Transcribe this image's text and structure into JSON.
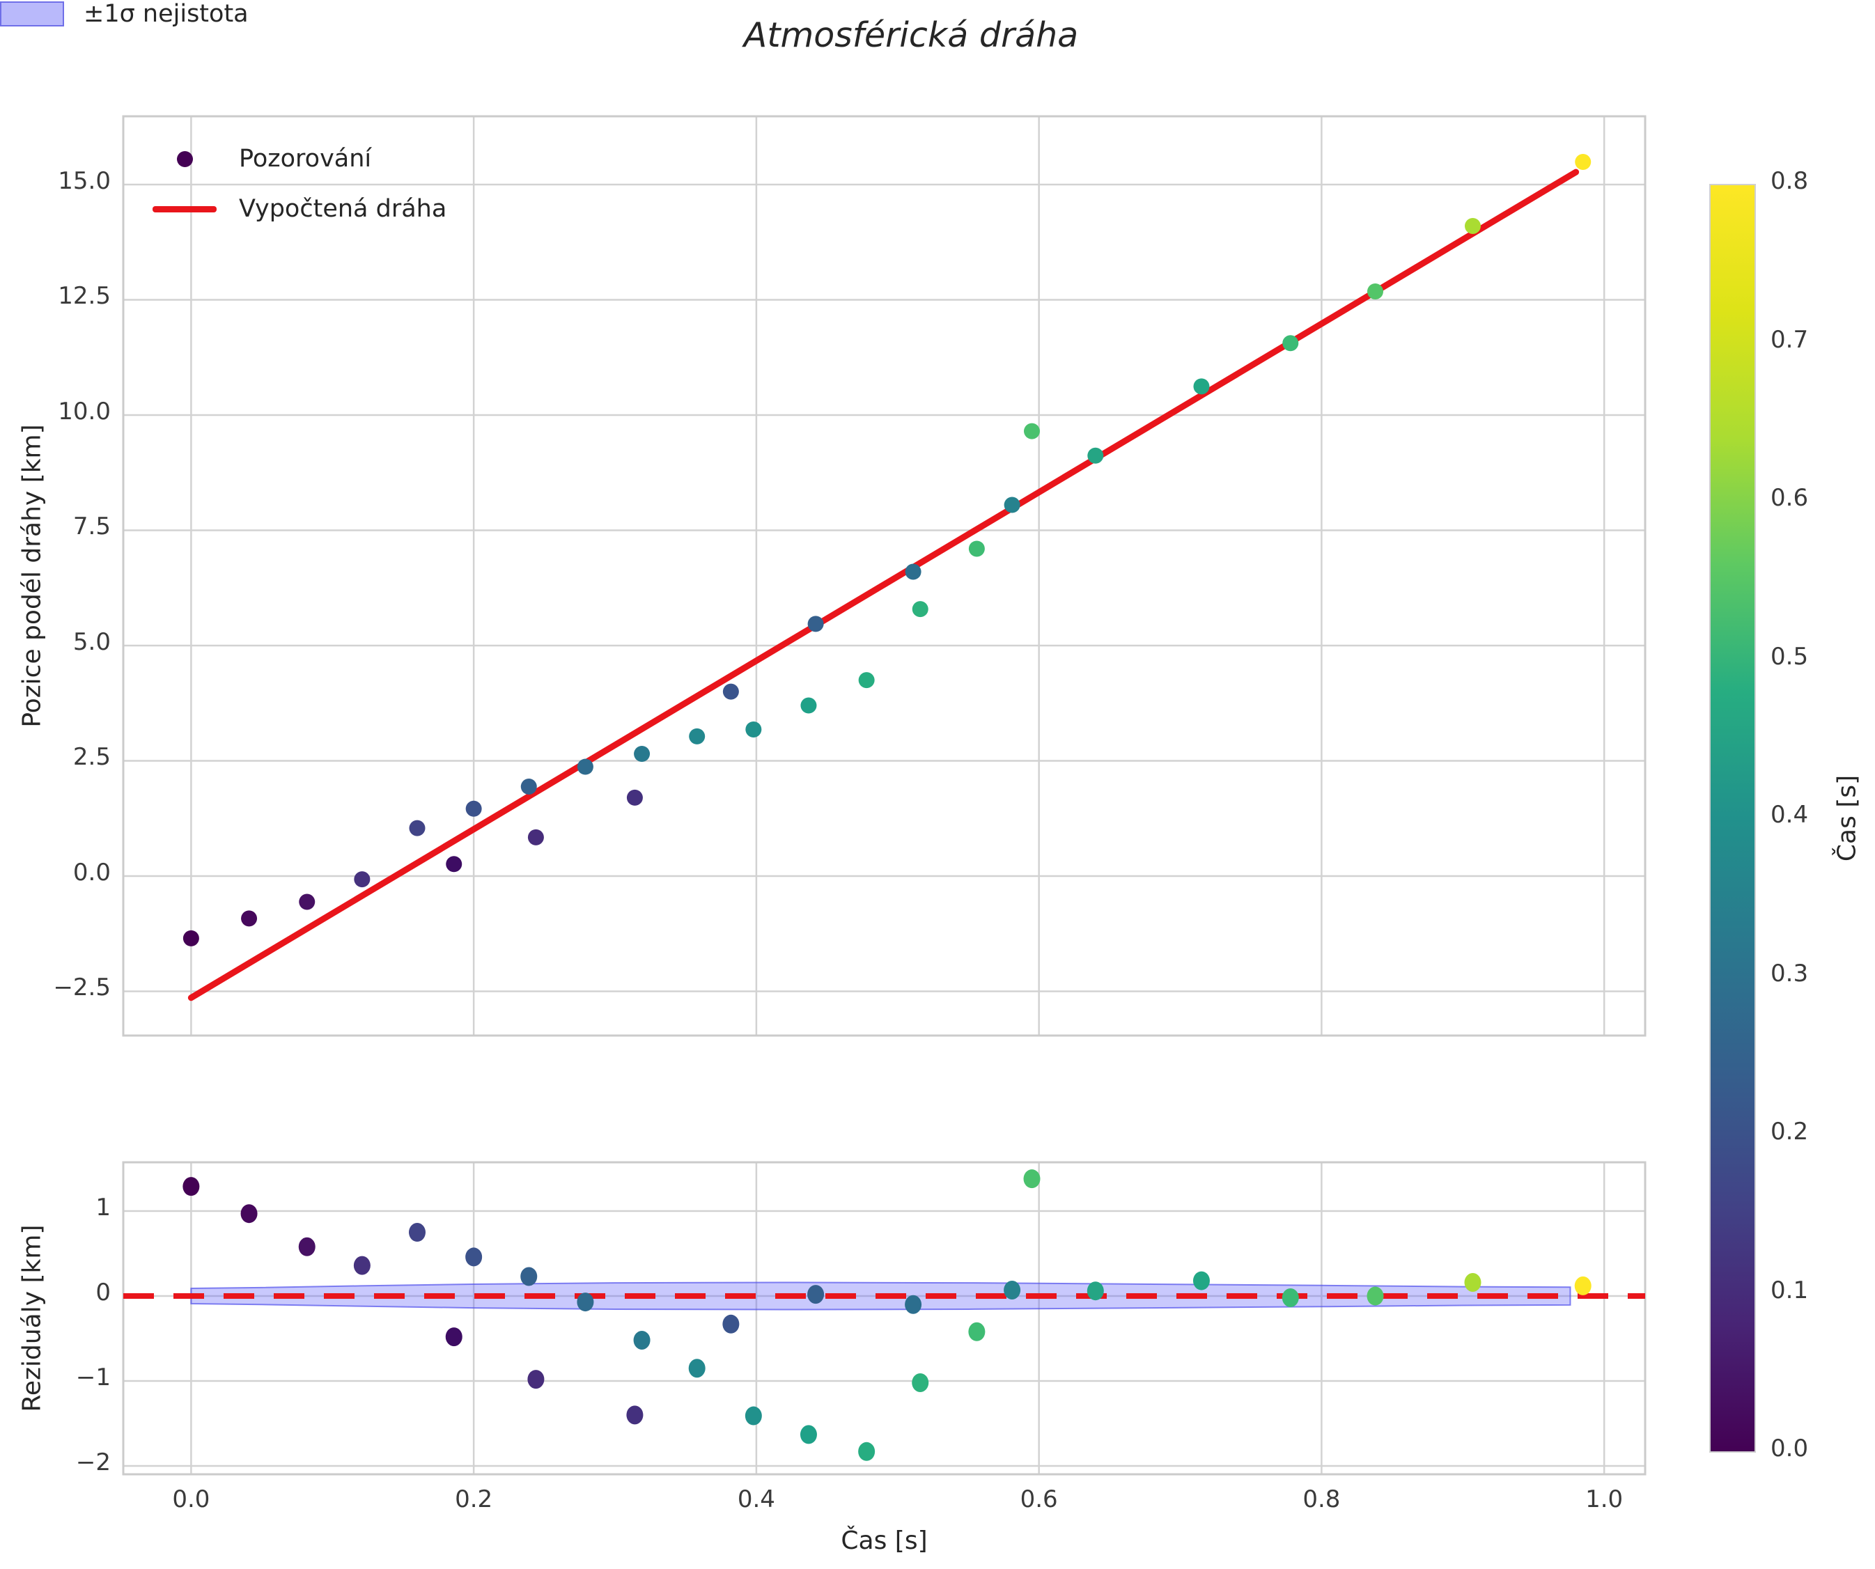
{
  "title": "Atmosférická dráha",
  "colors": {
    "red_line": "#e9151b",
    "grid": "#d2d2d2",
    "spine": "#cbcbcb",
    "band_fill": "rgba(100,100,250,0.35)",
    "band_edge": "rgba(80,80,235,0.70)",
    "legend_dot": "#440154",
    "legend_patch_fill": "#b9b9fb",
    "tick_text": "#3a3a3a"
  },
  "chart_data": {
    "type": "scatter",
    "title": "Atmosférická dráha",
    "colorbar": {
      "label": "Čas [s]",
      "vmin": 0.0,
      "vmax": 0.8,
      "tick_values": [
        0.0,
        0.1,
        0.2,
        0.3,
        0.4,
        0.5,
        0.6,
        0.7,
        0.8
      ],
      "tick_labels": [
        "0.0",
        "0.1",
        "0.2",
        "0.3",
        "0.4",
        "0.5",
        "0.6",
        "0.7",
        "0.8"
      ],
      "gradient_stops": [
        {
          "f": 0.0,
          "c": "#440154"
        },
        {
          "f": 0.1,
          "c": "#482475"
        },
        {
          "f": 0.2,
          "c": "#414487"
        },
        {
          "f": 0.3,
          "c": "#355f8d"
        },
        {
          "f": 0.4,
          "c": "#2a788e"
        },
        {
          "f": 0.5,
          "c": "#21918c"
        },
        {
          "f": 0.6,
          "c": "#27ad81"
        },
        {
          "f": 0.7,
          "c": "#5ec962"
        },
        {
          "f": 0.8,
          "c": "#aadc32"
        },
        {
          "f": 0.9,
          "c": "#dde318"
        },
        {
          "f": 1.0,
          "c": "#fde725"
        }
      ]
    },
    "points": [
      {
        "t": 0.0,
        "v": -1.35,
        "r": 1.29,
        "c": "#440154"
      },
      {
        "t": 0.041,
        "v": -0.92,
        "r": 0.97,
        "c": "#46085c"
      },
      {
        "t": 0.082,
        "v": -0.56,
        "r": 0.58,
        "c": "#471164"
      },
      {
        "t": 0.121,
        "v": -0.07,
        "r": 0.36,
        "c": "#46327e"
      },
      {
        "t": 0.16,
        "v": 1.04,
        "r": 0.75,
        "c": "#414487"
      },
      {
        "t": 0.186,
        "v": 0.26,
        "r": -0.48,
        "c": "#3d0c63"
      },
      {
        "t": 0.2,
        "v": 1.46,
        "r": 0.46,
        "c": "#3b528b"
      },
      {
        "t": 0.239,
        "v": 1.94,
        "r": 0.23,
        "c": "#34618d"
      },
      {
        "t": 0.244,
        "v": 0.84,
        "r": -0.98,
        "c": "#472d7b"
      },
      {
        "t": 0.279,
        "v": 2.37,
        "r": -0.07,
        "c": "#2f6b8e"
      },
      {
        "t": 0.314,
        "v": 1.7,
        "r": -1.4,
        "c": "#44307e"
      },
      {
        "t": 0.319,
        "v": 2.65,
        "r": -0.52,
        "c": "#28798e"
      },
      {
        "t": 0.358,
        "v": 3.03,
        "r": -0.85,
        "c": "#23888e"
      },
      {
        "t": 0.382,
        "v": 4.0,
        "r": -0.33,
        "c": "#3a548c"
      },
      {
        "t": 0.398,
        "v": 3.18,
        "r": -1.41,
        "c": "#21918c"
      },
      {
        "t": 0.437,
        "v": 3.7,
        "r": -1.63,
        "c": "#1fa188"
      },
      {
        "t": 0.442,
        "v": 5.47,
        "r": 0.02,
        "c": "#35608d"
      },
      {
        "t": 0.478,
        "v": 4.25,
        "r": -1.83,
        "c": "#27ad81"
      },
      {
        "t": 0.511,
        "v": 6.6,
        "r": -0.1,
        "c": "#2c6e8e"
      },
      {
        "t": 0.516,
        "v": 5.79,
        "r": -1.02,
        "c": "#2db27d"
      },
      {
        "t": 0.556,
        "v": 7.1,
        "r": -0.42,
        "c": "#3fbc73"
      },
      {
        "t": 0.581,
        "v": 8.05,
        "r": 0.07,
        "c": "#26828e"
      },
      {
        "t": 0.595,
        "v": 9.65,
        "r": 1.38,
        "c": "#4ac16d"
      },
      {
        "t": 0.64,
        "v": 9.12,
        "r": 0.06,
        "c": "#25a584"
      },
      {
        "t": 0.715,
        "v": 10.62,
        "r": 0.18,
        "c": "#22a785"
      },
      {
        "t": 0.778,
        "v": 11.56,
        "r": -0.02,
        "c": "#3bbb75"
      },
      {
        "t": 0.838,
        "v": 12.68,
        "r": 0.0,
        "c": "#53c568"
      },
      {
        "t": 0.907,
        "v": 14.1,
        "r": 0.16,
        "c": "#aadc32"
      },
      {
        "t": 0.985,
        "v": 15.49,
        "r": 0.12,
        "c": "#fde725"
      }
    ],
    "top": {
      "ylabel": "Pozice podél dráhy [km]",
      "xlim": [
        -0.048,
        1.029
      ],
      "ylim": [
        -3.46,
        16.48
      ],
      "xgrid_values": [
        0.0,
        0.2,
        0.4,
        0.6,
        0.8,
        1.0
      ],
      "ytick_values": [
        -2.5,
        0.0,
        2.5,
        5.0,
        7.5,
        10.0,
        12.5,
        15.0
      ],
      "ytick_labels": [
        "−2.5",
        "0.0",
        "2.5",
        "5.0",
        "7.5",
        "10.0",
        "12.5",
        "15.0"
      ],
      "fit_line": {
        "x": [
          0.0,
          0.98
        ],
        "y": [
          -2.64,
          15.27
        ]
      },
      "legend": [
        {
          "label": "Pozorování"
        },
        {
          "label": "Vypočtená dráha"
        }
      ]
    },
    "bottom": {
      "ylabel": "Reziduály [km]",
      "xlabel": "Čas [s]",
      "xlim": [
        -0.048,
        1.029
      ],
      "ylim": [
        -2.098,
        1.574
      ],
      "xtick_values": [
        0.0,
        0.2,
        0.4,
        0.6,
        0.8,
        1.0
      ],
      "xtick_labels": [
        "0.0",
        "0.2",
        "0.4",
        "0.6",
        "0.8",
        "1.0"
      ],
      "ytick_values": [
        1,
        0,
        -1,
        -2
      ],
      "ytick_labels": [
        "1",
        "0",
        "−1",
        "−2"
      ],
      "zero_line": 0.0,
      "band": {
        "x": [
          0.0,
          0.05,
          0.12,
          0.2,
          0.3,
          0.42,
          0.55,
          0.68,
          0.8,
          0.9,
          0.976
        ],
        "upper": [
          0.09,
          0.1,
          0.12,
          0.14,
          0.155,
          0.16,
          0.155,
          0.14,
          0.125,
          0.11,
          0.105
        ],
        "lower": [
          -0.09,
          -0.1,
          -0.12,
          -0.14,
          -0.155,
          -0.16,
          -0.155,
          -0.14,
          -0.125,
          -0.11,
          -0.105
        ]
      },
      "legend_label": "±1σ nejistota"
    }
  }
}
